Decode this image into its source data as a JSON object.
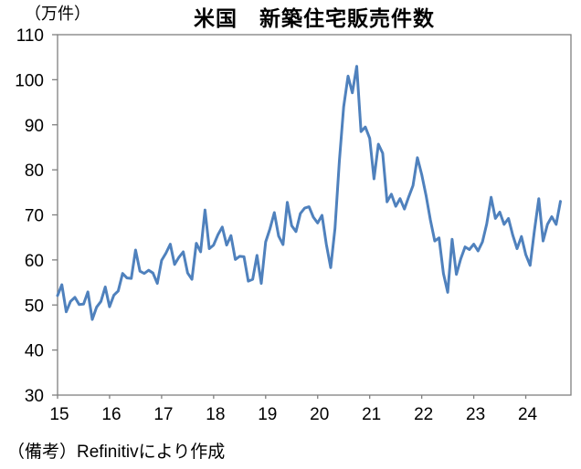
{
  "chart_data": {
    "type": "line",
    "title": "米国　新築住宅販売件数",
    "unit_label": "（万件）",
    "note": "（備考）Refinitivにより作成",
    "ylabel": "万件",
    "ylim": [
      30,
      110
    ],
    "y_tick_step": 10,
    "x_tick_labels": [
      "15",
      "16",
      "17",
      "18",
      "19",
      "20",
      "21",
      "22",
      "23",
      "24"
    ],
    "x_start": "2015-01",
    "x_end": "2024-09",
    "frequency": "monthly",
    "grid": false,
    "legend_position": "none",
    "line_color": "#4F81BD",
    "axis_color": "#808080",
    "series": [
      {
        "name": "米国 新築住宅販売件数（万件）",
        "values": [
          52.1,
          54.5,
          48.5,
          50.8,
          51.7,
          50.1,
          50.2,
          52.9,
          46.8,
          49.5,
          50.8,
          54.0,
          49.6,
          52.2,
          53.1,
          57.0,
          56.0,
          55.9,
          62.2,
          57.5,
          57.0,
          57.7,
          57.1,
          54.8,
          59.9,
          61.5,
          63.5,
          59.0,
          60.6,
          61.8,
          57.1,
          55.7,
          63.7,
          61.8,
          71.1,
          62.5,
          63.3,
          65.6,
          67.3,
          63.3,
          65.4,
          60.1,
          60.8,
          60.7,
          55.3,
          55.7,
          61.0,
          54.8,
          64.0,
          66.9,
          70.5,
          65.3,
          63.4,
          72.8,
          67.6,
          66.3,
          70.3,
          71.5,
          71.8,
          69.5,
          68.2,
          69.9,
          63.5,
          58.3,
          67.0,
          82.0,
          94.0,
          100.8,
          97.1,
          103.0,
          88.5,
          89.5,
          87.0,
          78.0,
          85.7,
          83.7,
          72.9,
          74.6,
          71.9,
          73.6,
          71.3,
          74.0,
          76.5,
          82.7,
          79.0,
          74.3,
          68.9,
          64.2,
          64.9,
          57.0,
          52.8,
          64.6,
          56.8,
          60.2,
          62.9,
          62.3,
          63.5,
          62.0,
          64.0,
          68.0,
          73.9,
          69.2,
          70.6,
          67.9,
          69.2,
          65.5,
          62.5,
          65.2,
          61.2,
          58.8,
          66.5,
          73.6,
          64.2,
          67.9,
          69.6,
          67.9,
          73.0
        ]
      }
    ]
  }
}
